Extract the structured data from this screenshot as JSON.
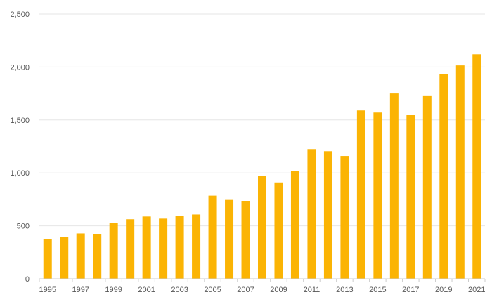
{
  "chart_data": {
    "type": "bar",
    "title": "",
    "xlabel": "",
    "ylabel": "",
    "categories": [
      "1995",
      "1996",
      "1997",
      "1998",
      "1999",
      "2000",
      "2001",
      "2002",
      "2003",
      "2004",
      "2005",
      "2006",
      "2007",
      "2008",
      "2009",
      "2010",
      "2011",
      "2012",
      "2013",
      "2014",
      "2015",
      "2016",
      "2017",
      "2018",
      "2019",
      "2020",
      "2021"
    ],
    "x_tick_labels": [
      "1995",
      "1997",
      "1999",
      "2001",
      "2003",
      "2005",
      "2007",
      "2009",
      "2011",
      "2013",
      "2015",
      "2017",
      "2019",
      "2021"
    ],
    "values": [
      375,
      395,
      428,
      420,
      528,
      562,
      588,
      568,
      592,
      607,
      785,
      745,
      733,
      970,
      910,
      1020,
      1225,
      1205,
      1160,
      1590,
      1570,
      1750,
      1545,
      1725,
      1930,
      2015,
      2120
    ],
    "ylim": [
      0,
      2500
    ],
    "y_ticks": [
      0,
      500,
      1000,
      1500,
      2000,
      2500
    ],
    "y_tick_labels": [
      "0",
      "500",
      "1,000",
      "1,500",
      "2,000",
      "2,500"
    ],
    "grid": true,
    "bar_color": "#FBB404"
  }
}
